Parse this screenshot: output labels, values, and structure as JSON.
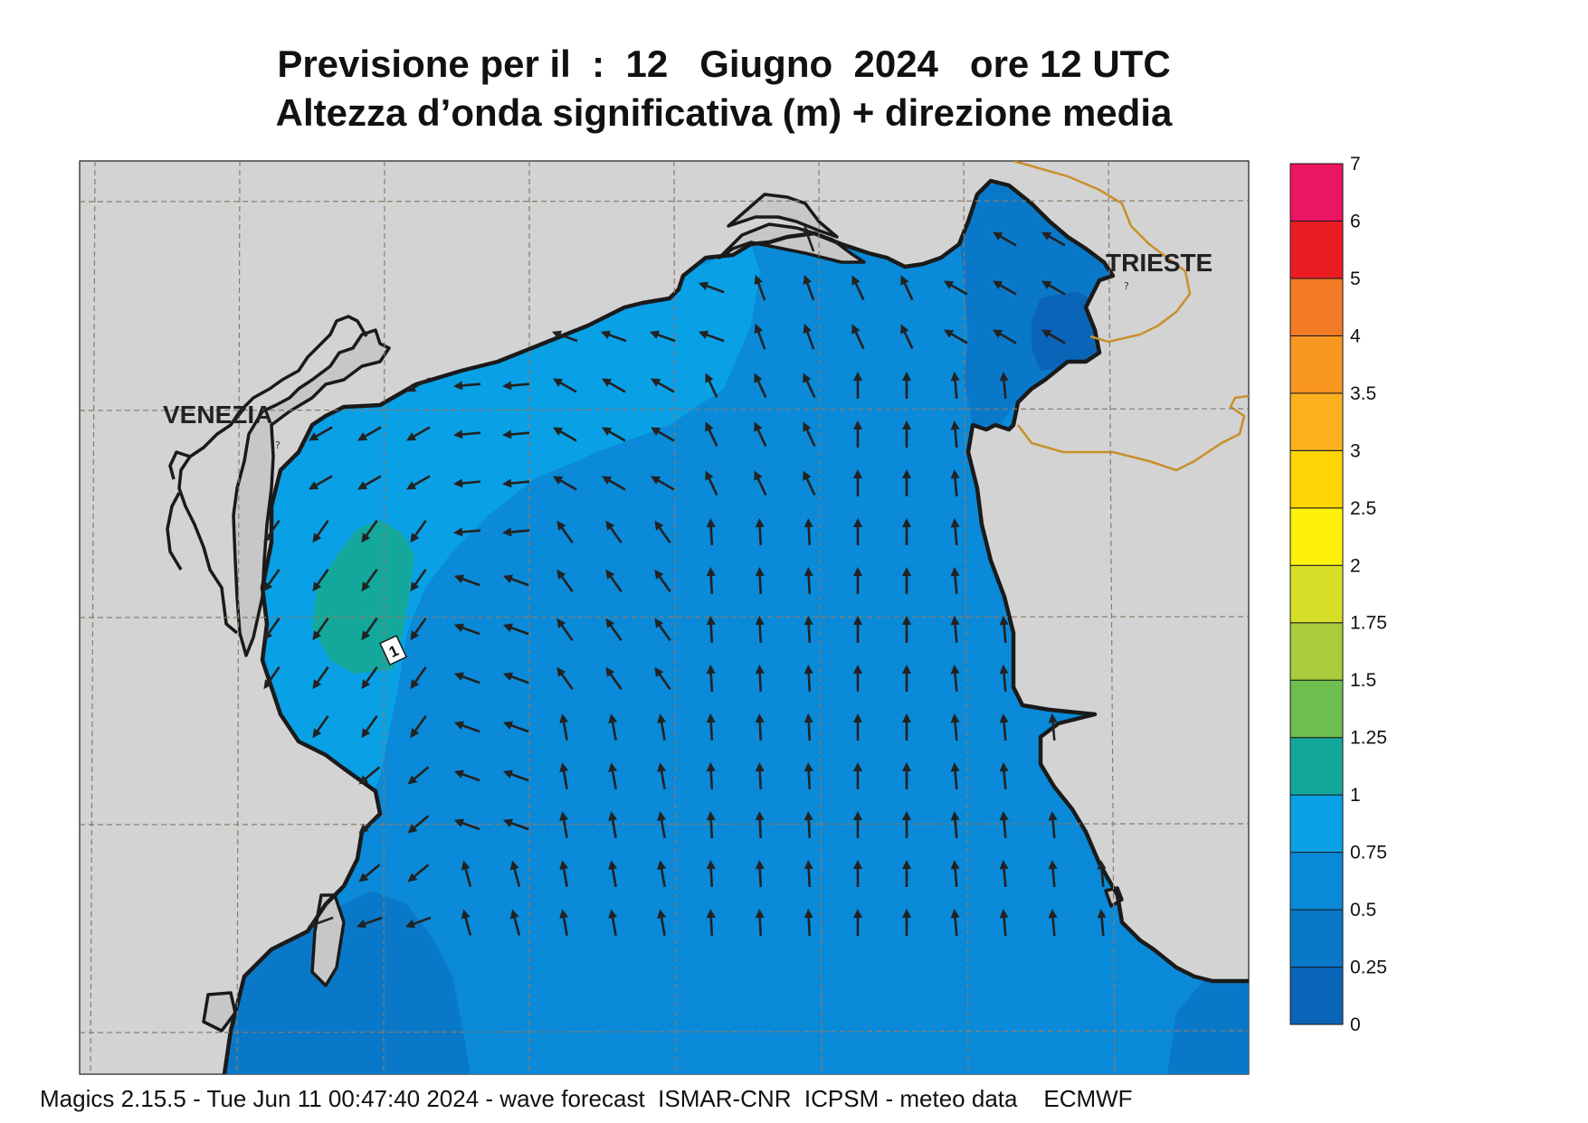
{
  "title": {
    "line1": "Previsione per il  :  12   Giugno  2024   ore 12 UTC",
    "line2": "Altezza d’onda significativa (m) + direzione media"
  },
  "places": [
    {
      "name": "VENEZIA"
    },
    {
      "name": "TRIESTE"
    }
  ],
  "contour_label": "1",
  "colorbar": {
    "unit": "m",
    "bands": [
      {
        "from": 0,
        "to": 0.25,
        "color": "#0a64b8"
      },
      {
        "from": 0.25,
        "to": 0.5,
        "color": "#0a78c8"
      },
      {
        "from": 0.5,
        "to": 0.75,
        "color": "#0a8ad8"
      },
      {
        "from": 0.75,
        "to": 1,
        "color": "#0aa0e6"
      },
      {
        "from": 1,
        "to": 1.25,
        "color": "#14a89c"
      },
      {
        "from": 1.25,
        "to": 1.5,
        "color": "#6ebe50"
      },
      {
        "from": 1.5,
        "to": 1.75,
        "color": "#a8cc3c"
      },
      {
        "from": 1.75,
        "to": 2,
        "color": "#d7de28"
      },
      {
        "from": 2,
        "to": 2.5,
        "color": "#fff20a"
      },
      {
        "from": 2.5,
        "to": 3,
        "color": "#fdd405"
      },
      {
        "from": 3,
        "to": 3.5,
        "color": "#fbb11e"
      },
      {
        "from": 3.5,
        "to": 4,
        "color": "#f99622"
      },
      {
        "from": 4,
        "to": 5,
        "color": "#f47b26"
      },
      {
        "from": 5,
        "to": 6,
        "color": "#ec1c24"
      },
      {
        "from": 6,
        "to": 7,
        "color": "#ec1562"
      }
    ],
    "tick_labels": [
      "0",
      "0.25",
      "0.5",
      "0.75",
      "1",
      "1.25",
      "1.5",
      "1.75",
      "2",
      "2.5",
      "3",
      "3.5",
      "4",
      "5",
      "6",
      "7"
    ]
  },
  "colors": {
    "land": "#d3d3d3",
    "coastline": "#1a1a1a",
    "border": "#c8902a",
    "grid": "#8c7a6a",
    "arrow": "#222222"
  },
  "footer": "Magics 2.15.5 - Tue Jun 11 00:47:40 2024 - wave forecast  ISMAR-CNR  ICPSM - meteo data    ECMWF"
}
